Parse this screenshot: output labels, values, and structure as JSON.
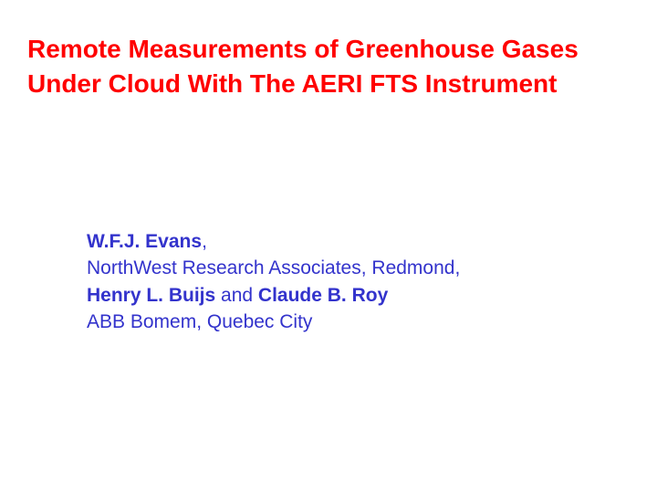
{
  "slide": {
    "title_line1": "Remote Measurements of Greenhouse Gases",
    "title_line2": "Under Cloud With The AERI FTS Instrument",
    "title_color": "#ff0000",
    "title_fontsize": 28,
    "author_color": "#3333cc",
    "author_fontsize": 21,
    "background_color": "#ffffff",
    "authors": {
      "author1": "W.F.J.  Evans",
      "comma": ",",
      "affiliation1": "NorthWest  Research Associates, Redmond,",
      "author2": "Henry  L. Buijs",
      "and": " and ",
      "author3": "Claude B. Roy",
      "affiliation2": "ABB Bomem, Quebec City"
    }
  }
}
